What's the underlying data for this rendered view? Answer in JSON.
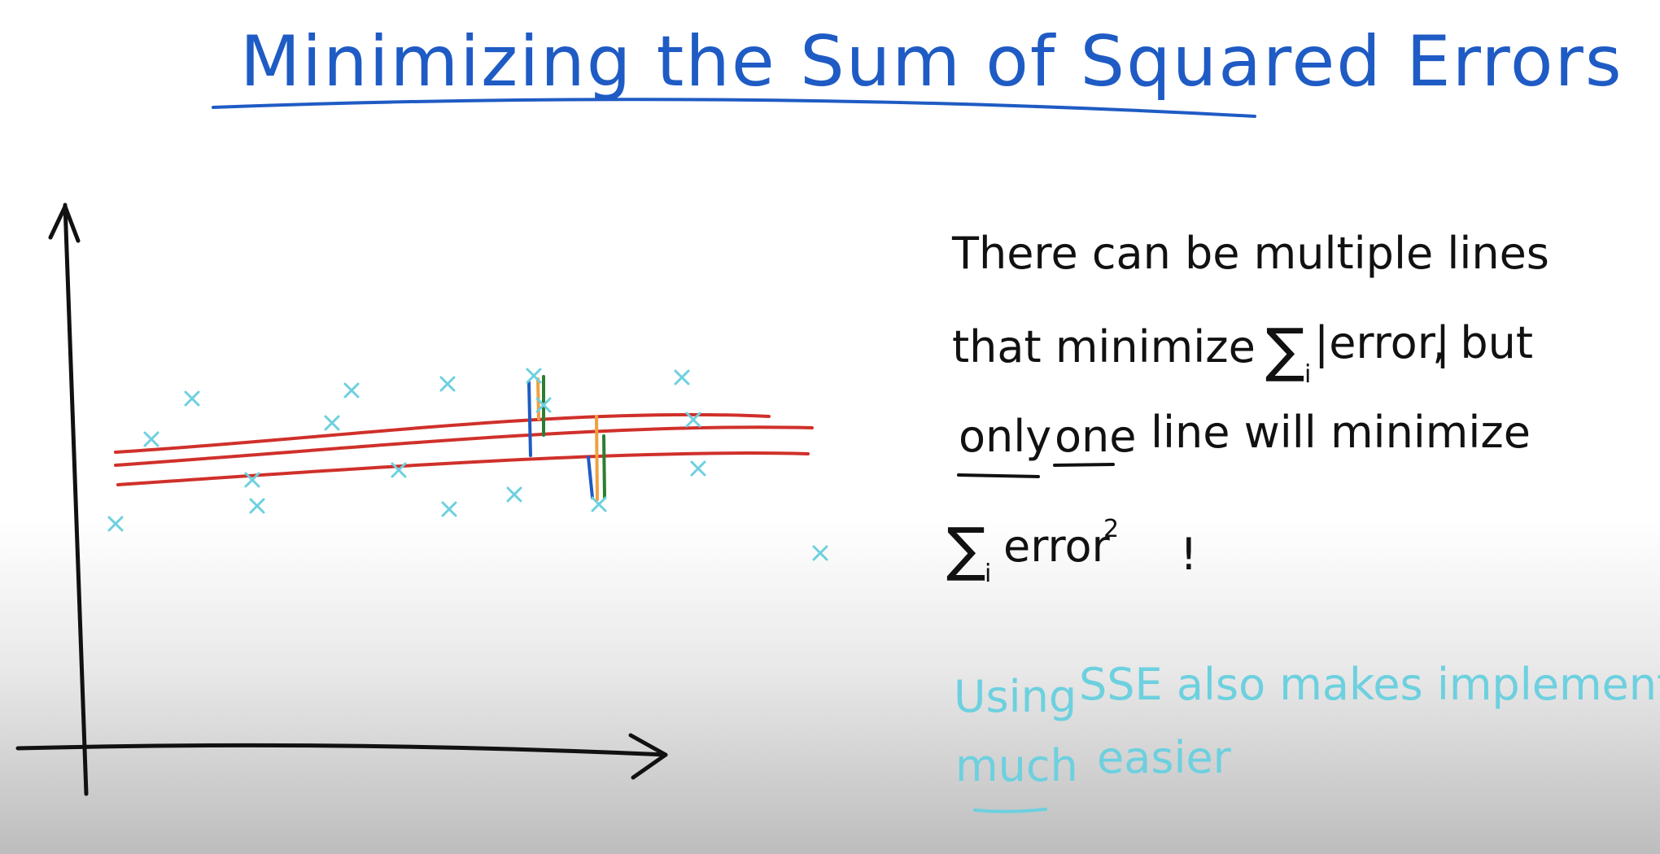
{
  "title": "Minimizing the Sum of Squared Errors",
  "notes": {
    "line1": "There can be multiple lines",
    "line2_prefix": "that minimize",
    "sum_symbol": "∑",
    "sum_sub": "i",
    "abs_error": "|error|",
    "line2_suffix": ", but",
    "line3_only": "only",
    "line3_one": "one",
    "line3_rest": "line will minimize",
    "sq_error": "error",
    "sq_exp": "2",
    "exclaim": "!"
  },
  "aside": {
    "line1_using": "Using",
    "line1_rest": "SSE also makes implementation",
    "line2_much": "much",
    "line2_easier": "easier"
  },
  "colors": {
    "title": "#1f5bc4",
    "ink": "#111111",
    "points": "#6dd0df",
    "fit_lines": "#d0302a",
    "err_blue": "#1f5bc4",
    "err_orange": "#f0a040",
    "err_green": "#2e7d32"
  },
  "diagram": {
    "fit_line_count": 3,
    "point_marker": "cross"
  }
}
